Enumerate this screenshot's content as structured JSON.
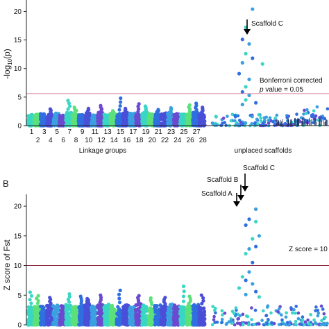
{
  "colors": {
    "lg_palette": [
      "#3ad6c4",
      "#5ce07a",
      "#2f6fe0",
      "#4a4fd8",
      "#3aa0e0",
      "#6b49d0"
    ],
    "unplaced_palette": [
      "#2f6fe0",
      "#3aa0e0",
      "#3ad6c4",
      "#6b49d0"
    ],
    "threshold_line": "#d9849a",
    "threshold_line_b": "#8b2a3a",
    "axis": "#222222"
  },
  "chart_data": [
    {
      "id": "panel-a",
      "type": "scatter",
      "panel_label": "",
      "ylabel": "-log10(p)",
      "ylabel_parts": {
        "main": "-log",
        "sub": "10",
        "rest": "(p)"
      },
      "ylim": [
        0,
        22
      ],
      "yticks": [
        0,
        5,
        10,
        15,
        20
      ],
      "threshold": {
        "value": 5.6,
        "label_line1": "Bonferroni corrected",
        "label_line2_pre": "",
        "label_line2_italic": "p",
        "label_line2_post": " value = 0.05"
      },
      "x_groups": {
        "linkage_label": "Linkage groups",
        "unplaced_label": "unplaced scaffolds",
        "top_row_ticks": [
          "1",
          "3",
          "5",
          "7",
          "9",
          "11",
          "13",
          "15",
          "17",
          "19",
          "21",
          "23",
          "25",
          "27"
        ],
        "bottom_row_ticks": [
          "2",
          "4",
          "6",
          "8",
          "10",
          "12",
          "14",
          "16",
          "18",
          "20",
          "22",
          "24",
          "26",
          "28"
        ]
      },
      "annotations": [
        {
          "label": "Scaffold C",
          "value": 16.9
        }
      ],
      "series": [
        {
          "group": "linkage",
          "typical_max": [
            1.9,
            2.0,
            2.1,
            2.0,
            2.2,
            2.0,
            2.4,
            2.1,
            2.0,
            2.2,
            2.1,
            2.3,
            2.0,
            2.6,
            2.1,
            2.3,
            2.2,
            2.0,
            2.4,
            2.1,
            2.0,
            2.2,
            2.3,
            2.1,
            2.0,
            2.2,
            2.4,
            2.1
          ],
          "peaks": [
            {
              "lg": 4,
              "value": 2.9
            },
            {
              "lg": 7,
              "value": 4.4
            },
            {
              "lg": 8,
              "value": 3.2
            },
            {
              "lg": 10,
              "value": 3.0
            },
            {
              "lg": 12,
              "value": 3.5
            },
            {
              "lg": 15,
              "value": 4.8
            },
            {
              "lg": 16,
              "value": 3.0
            },
            {
              "lg": 18,
              "value": 3.8
            },
            {
              "lg": 19,
              "value": 3.4
            },
            {
              "lg": 21,
              "value": 2.8
            },
            {
              "lg": 23,
              "value": 3.1
            },
            {
              "lg": 26,
              "value": 3.6
            },
            {
              "lg": 27,
              "value": 3.9
            },
            {
              "lg": 28,
              "value": 3.2
            }
          ]
        },
        {
          "group": "unplaced",
          "highlight_points": [
            {
              "x": 0.12,
              "value": 22.5
            },
            {
              "x": 0.12,
              "value": 20.4
            },
            {
              "x": 0.1,
              "value": 17.2
            },
            {
              "x": 0.09,
              "value": 15.1
            },
            {
              "x": 0.11,
              "value": 14.3
            },
            {
              "x": 0.1,
              "value": 12.6
            },
            {
              "x": 0.12,
              "value": 11.8
            },
            {
              "x": 0.09,
              "value": 11.0
            },
            {
              "x": 0.15,
              "value": 10.8
            },
            {
              "x": 0.08,
              "value": 9.1
            },
            {
              "x": 0.11,
              "value": 8.1
            },
            {
              "x": 0.1,
              "value": 6.8
            },
            {
              "x": 0.09,
              "value": 5.9
            },
            {
              "x": 0.11,
              "value": 5.3
            },
            {
              "x": 0.1,
              "value": 4.5
            },
            {
              "x": 0.13,
              "value": 4.0
            },
            {
              "x": 0.09,
              "value": 3.7
            }
          ]
        }
      ]
    },
    {
      "id": "panel-b",
      "type": "scatter",
      "panel_label": "B",
      "ylabel": "Z score of Fst",
      "ylim": [
        0,
        22
      ],
      "yticks": [
        0,
        5,
        10,
        15,
        20
      ],
      "threshold": {
        "value": 10,
        "label": "Z score = 10"
      },
      "annotations": [
        {
          "label": "Scaffold A",
          "value": 19.2
        },
        {
          "label": "Scaffold B",
          "value": 20.5
        },
        {
          "label": "Scaffold C",
          "value": 20.8
        }
      ],
      "series": [
        {
          "group": "linkage",
          "typical_max": [
            3.0,
            3.2,
            3.1,
            3.3,
            3.5,
            3.2,
            3.4,
            3.1,
            3.3,
            3.6,
            3.2,
            3.4,
            3.5,
            3.3,
            3.1,
            3.4,
            3.2,
            3.6,
            3.3,
            3.1,
            3.4,
            3.2,
            3.5,
            3.3,
            3.1,
            3.2,
            3.4,
            3.1
          ],
          "peaks": [
            {
              "lg": 1,
              "value": 5.5
            },
            {
              "lg": 2,
              "value": 4.9
            },
            {
              "lg": 4,
              "value": 4.6
            },
            {
              "lg": 7,
              "value": 5.2
            },
            {
              "lg": 9,
              "value": 4.8
            },
            {
              "lg": 10,
              "value": 4.4
            },
            {
              "lg": 12,
              "value": 5.0
            },
            {
              "lg": 15,
              "value": 5.8
            },
            {
              "lg": 18,
              "value": 4.9
            },
            {
              "lg": 20,
              "value": 4.5
            },
            {
              "lg": 22,
              "value": 4.6
            },
            {
              "lg": 25,
              "value": 6.5
            },
            {
              "lg": 26,
              "value": 4.8
            },
            {
              "lg": 28,
              "value": 5.0
            }
          ]
        },
        {
          "group": "unplaced",
          "highlight_points": [
            {
              "x": 0.11,
              "value": 17.8
            },
            {
              "x": 0.13,
              "value": 19.5
            },
            {
              "x": 0.13,
              "value": 17.4
            },
            {
              "x": 0.1,
              "value": 16.8
            },
            {
              "x": 0.14,
              "value": 15.0
            },
            {
              "x": 0.12,
              "value": 14.5
            },
            {
              "x": 0.13,
              "value": 13.2
            },
            {
              "x": 0.11,
              "value": 12.8
            },
            {
              "x": 0.1,
              "value": 12.0
            },
            {
              "x": 0.12,
              "value": 10.5
            },
            {
              "x": 0.11,
              "value": 8.9
            },
            {
              "x": 0.09,
              "value": 8.1
            },
            {
              "x": 0.1,
              "value": 7.5
            },
            {
              "x": 0.12,
              "value": 6.9
            },
            {
              "x": 0.08,
              "value": 6.2
            },
            {
              "x": 0.13,
              "value": 5.6
            },
            {
              "x": 0.1,
              "value": 5.1
            },
            {
              "x": 0.14,
              "value": 4.7
            }
          ]
        }
      ]
    }
  ]
}
